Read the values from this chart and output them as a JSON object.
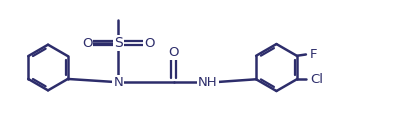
{
  "line_color": "#2d2d6b",
  "line_width": 1.8,
  "bg_color": "#ffffff",
  "font_size": 9.5,
  "fig_w": 3.93,
  "fig_h": 1.22,
  "dpi": 100,
  "xlim": [
    0,
    12
  ],
  "ylim": [
    -1.6,
    1.8
  ]
}
